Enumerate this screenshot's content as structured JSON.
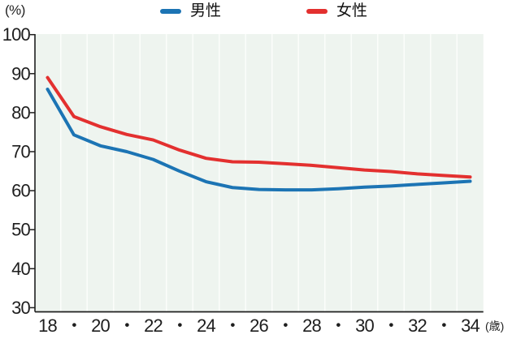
{
  "chart_data": {
    "type": "line",
    "title": "",
    "y_unit": "(%)",
    "x_unit": "(歳)",
    "x": [
      18,
      19,
      20,
      21,
      22,
      23,
      24,
      25,
      26,
      27,
      28,
      29,
      30,
      31,
      32,
      33,
      34
    ],
    "x_tick_labels": [
      "18",
      "・",
      "20",
      "・",
      "22",
      "・",
      "24",
      "・",
      "26",
      "・",
      "28",
      "・",
      "30",
      "・",
      "32",
      "・",
      "34"
    ],
    "y_ticks": [
      100,
      90,
      80,
      70,
      60,
      50,
      40,
      30
    ],
    "ylim": [
      30,
      100
    ],
    "grid": "vertical-only",
    "legend_position": "top-center",
    "plot_bg": "#eef4ef",
    "grid_color": "#fbfdfa",
    "axis_color": "#1f1f1f",
    "series": [
      {
        "name": "男性",
        "color": "#1c74b4",
        "values": [
          86,
          74.3,
          71.5,
          70,
          68,
          65,
          62.3,
          60.8,
          60.3,
          60.2,
          60.2,
          60.5,
          60.9,
          61.2,
          61.6,
          62,
          62.4
        ]
      },
      {
        "name": "女性",
        "color": "#e3302f",
        "values": [
          89,
          79,
          76.4,
          74.4,
          73,
          70.4,
          68.3,
          67.4,
          67.3,
          66.9,
          66.5,
          65.9,
          65.3,
          64.9,
          64.3,
          63.9,
          63.5
        ]
      }
    ]
  }
}
